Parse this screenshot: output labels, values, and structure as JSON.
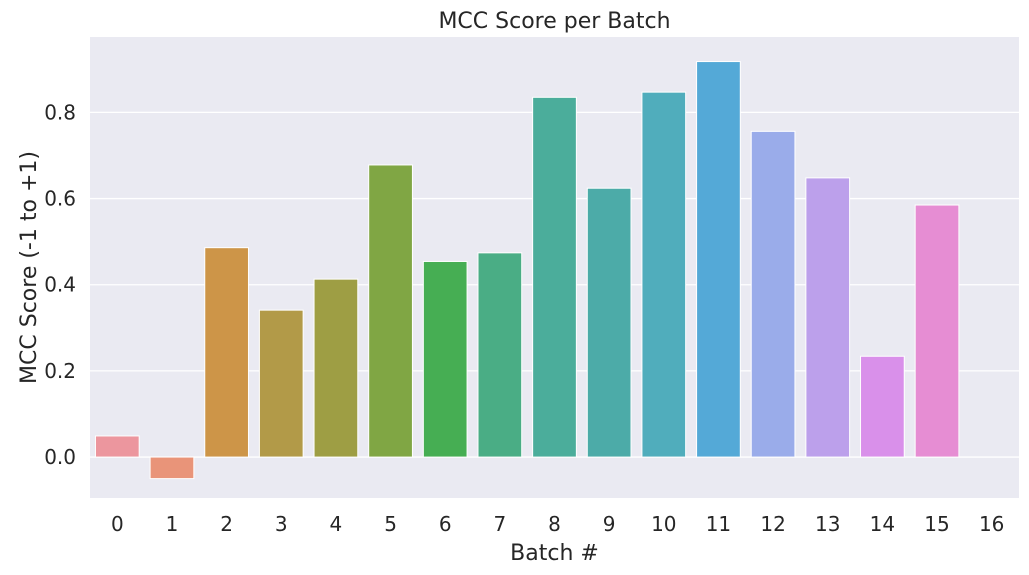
{
  "chart_data": {
    "type": "bar",
    "title": "MCC Score per Batch",
    "xlabel": "Batch #",
    "ylabel": "MCC Score (-1 to +1)",
    "categories": [
      "0",
      "1",
      "2",
      "3",
      "4",
      "5",
      "6",
      "7",
      "8",
      "9",
      "10",
      "11",
      "12",
      "13",
      "14",
      "15",
      "16"
    ],
    "values": [
      0.049,
      -0.05,
      0.486,
      0.341,
      0.413,
      0.678,
      0.454,
      0.474,
      0.835,
      0.624,
      0.847,
      0.918,
      0.756,
      0.648,
      0.234,
      0.585,
      0.0
    ],
    "ylim": [
      -0.095,
      0.975
    ],
    "yticks": [
      0.0,
      0.2,
      0.4,
      0.6,
      0.8
    ],
    "ytick_labels": [
      "0.0",
      "0.2",
      "0.4",
      "0.6",
      "0.8"
    ],
    "grid": true,
    "background": "#eaeaf2",
    "colors": [
      "#ec969e",
      "#e99479",
      "#cd9548",
      "#b29a48",
      "#9e9e44",
      "#80a644",
      "#46ae53",
      "#4aad85",
      "#4bad9b",
      "#4caba8",
      "#50adbc",
      "#54a9d7",
      "#9aacea",
      "#bca0eb",
      "#d990ea",
      "#e68dd3",
      "#ea93a8"
    ]
  }
}
